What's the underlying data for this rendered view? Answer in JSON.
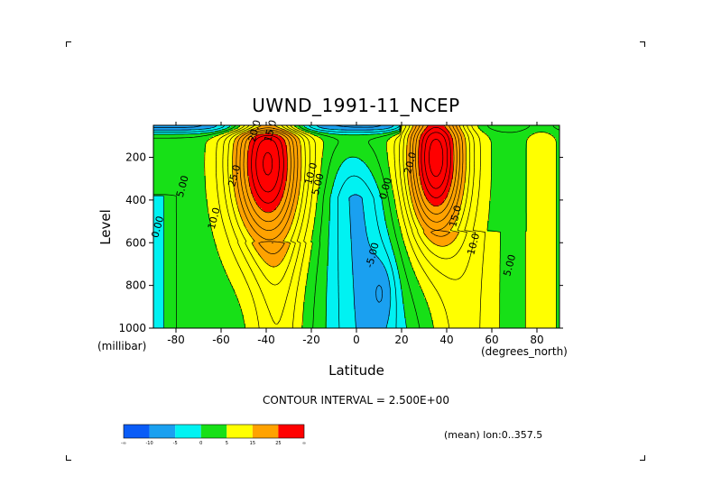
{
  "chart_data": {
    "type": "heatmap",
    "plot_style": "filled-contour",
    "title": "UWND_1991-11_NCEP",
    "xlabel": "Latitude",
    "ylabel": "Level",
    "x_units": "(degrees_north)",
    "y_units": "(millibar)",
    "xlim": [
      -90,
      90
    ],
    "ylim": [
      1000,
      50
    ],
    "y_inverted": true,
    "x_ticks": [
      -80,
      -60,
      -40,
      -20,
      0,
      20,
      40,
      60,
      80
    ],
    "x_tick_labels": [
      "-80",
      "-60",
      "-40",
      "-20",
      "0",
      "20",
      "40",
      "60",
      "80"
    ],
    "y_ticks": [
      200,
      400,
      600,
      800,
      1000
    ],
    "y_tick_labels": [
      "200",
      "400",
      "600",
      "800",
      "1000"
    ],
    "contour_interval_text": "CONTOUR INTERVAL = 2.500E+00",
    "contour_interval": 2.5,
    "fill_levels": [
      -10,
      -5,
      0,
      5,
      15,
      25
    ],
    "fill_colors": [
      "#0a5cf7",
      "#1aa0f0",
      "#00f2f2",
      "#17e017",
      "#ffff00",
      "#ffa200",
      "#ff0000"
    ],
    "colorbar_labels": [
      "-∞",
      "-10",
      "-5",
      "0",
      "5",
      "15",
      "25",
      "∞"
    ],
    "jets": [
      {
        "lat": -40,
        "level": 230,
        "max": 27.5
      },
      {
        "lat": 35,
        "level": 200,
        "max": 30
      }
    ],
    "contour_labels": [
      {
        "text": "5.00",
        "lat": -77,
        "level": 390
      },
      {
        "text": "0.00",
        "lat": -88,
        "level": 580
      },
      {
        "text": "10.0",
        "lat": -63,
        "level": 540
      },
      {
        "text": "10.0",
        "lat": -20,
        "level": 330
      },
      {
        "text": "5.00",
        "lat": -17,
        "level": 380
      },
      {
        "text": "20.0",
        "lat": -45,
        "level": 130
      },
      {
        "text": "15.0",
        "lat": -38,
        "level": 130
      },
      {
        "text": "25.0",
        "lat": -54,
        "level": 340
      },
      {
        "text": "0.00",
        "lat": 13,
        "level": 400
      },
      {
        "text": "-5.00",
        "lat": 7,
        "level": 720
      },
      {
        "text": "20.0",
        "lat": 24,
        "level": 280
      },
      {
        "text": "15.0",
        "lat": 44,
        "level": 530
      },
      {
        "text": "10.0",
        "lat": 52,
        "level": 660
      },
      {
        "text": "5.00",
        "lat": 68,
        "level": 760
      }
    ],
    "meta_text": "(mean) lon:0..357.5"
  }
}
